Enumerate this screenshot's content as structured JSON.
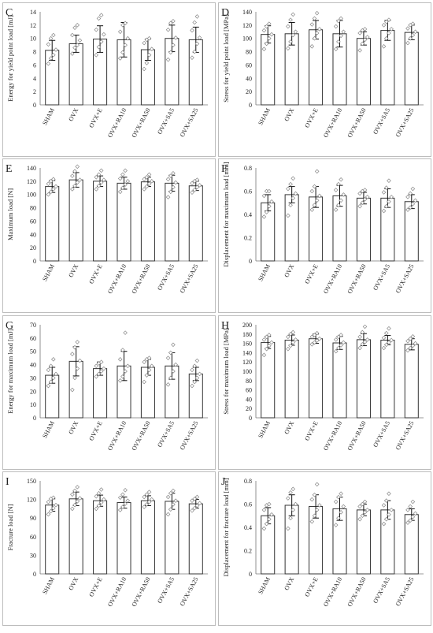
{
  "chart_data": [
    {
      "panel": "C",
      "type": "bar",
      "categories": [
        "SHAM",
        "OVX",
        "OVX+E",
        "OVX+RA10",
        "OVX+RA50",
        "OVX+SA5",
        "OVX+SA25"
      ],
      "values": [
        8.2,
        9.2,
        9.9,
        9.8,
        8.3,
        10.0,
        9.8
      ],
      "error": [
        1.5,
        1.3,
        2.0,
        2.6,
        1.6,
        2.0,
        1.9
      ],
      "points": [
        [
          6.2,
          7.0,
          7.5,
          8.3,
          9.1,
          10.0,
          10.5
        ],
        [
          7.7,
          8.6,
          9.0,
          9.7,
          10.5,
          11.6,
          12.0
        ],
        [
          7.5,
          8.7,
          9.5,
          10.6,
          11.3,
          13.0,
          13.5
        ],
        [
          7.0,
          7.9,
          9.0,
          10.0,
          11.0,
          12.0,
          12.3
        ],
        [
          5.4,
          6.3,
          7.5,
          8.4,
          9.3,
          9.8,
          10.0
        ],
        [
          6.8,
          7.9,
          9.0,
          10.1,
          11.3,
          12.3,
          12.6
        ],
        [
          7.1,
          8.0,
          9.2,
          10.1,
          11.2,
          12.4,
          13.3
        ]
      ],
      "ylabel": "Energy for yield point load [mJ]",
      "ylim": [
        0,
        14
      ],
      "yticks": [
        0,
        2,
        4,
        6,
        8,
        10,
        12,
        14
      ]
    },
    {
      "panel": "D",
      "type": "bar",
      "categories": [
        "SHAM",
        "OVX",
        "OVX+E",
        "OVX+RA10",
        "OVX+RA50",
        "OVX+SA5",
        "OVX+SA25"
      ],
      "values": [
        106,
        107,
        113,
        107,
        100,
        112,
        109
      ],
      "error": [
        13,
        17,
        14,
        20,
        10,
        15,
        11
      ],
      "points": [
        [
          84,
          92,
          100,
          106,
          112,
          118,
          122
        ],
        [
          85,
          95,
          105,
          110,
          118,
          128,
          136
        ],
        [
          88,
          100,
          108,
          114,
          121,
          130,
          138
        ],
        [
          84,
          95,
          104,
          110,
          118,
          126,
          130
        ],
        [
          82,
          92,
          98,
          102,
          108,
          112,
          114
        ],
        [
          88,
          100,
          108,
          114,
          120,
          125,
          128
        ],
        [
          93,
          100,
          105,
          110,
          115,
          120,
          122
        ]
      ],
      "ylabel": "Stress for yield point load [MPa]",
      "ylim": [
        0,
        140
      ],
      "yticks": [
        0,
        20,
        40,
        60,
        80,
        100,
        120,
        140
      ]
    },
    {
      "panel": "E",
      "type": "bar",
      "categories": [
        "SHAM",
        "OVX",
        "OVX+E",
        "OVX+RA10",
        "OVX+RA50",
        "OVX+SA5",
        "OVX+SA25"
      ],
      "values": [
        112,
        122,
        120,
        117,
        119,
        117,
        113
      ],
      "error": [
        9,
        11,
        8,
        9,
        7,
        12,
        7
      ],
      "points": [
        [
          100,
          104,
          108,
          112,
          116,
          120,
          123
        ],
        [
          108,
          113,
          118,
          122,
          128,
          135,
          142
        ],
        [
          108,
          113,
          118,
          122,
          126,
          130,
          136
        ],
        [
          104,
          110,
          115,
          120,
          124,
          130,
          136
        ],
        [
          108,
          112,
          116,
          120,
          123,
          126,
          130
        ],
        [
          96,
          104,
          111,
          118,
          123,
          128,
          132
        ],
        [
          103,
          107,
          111,
          114,
          117,
          120,
          122
        ]
      ],
      "ylabel": "Maximum load [N]",
      "ylim": [
        0,
        140
      ],
      "yticks": [
        0,
        20,
        40,
        60,
        80,
        100,
        120,
        140
      ]
    },
    {
      "panel": "F",
      "type": "bar",
      "categories": [
        "SHAM",
        "OVX",
        "OVX+E",
        "OVX+RA10",
        "OVX+RA50",
        "OVX+SA5",
        "OVX+SA25"
      ],
      "values": [
        0.5,
        0.57,
        0.55,
        0.56,
        0.54,
        0.54,
        0.51
      ],
      "error": [
        0.07,
        0.07,
        0.09,
        0.09,
        0.05,
        0.08,
        0.06
      ],
      "points": [
        [
          0.38,
          0.42,
          0.47,
          0.51,
          0.56,
          0.6,
          0.6
        ],
        [
          0.39,
          0.48,
          0.54,
          0.58,
          0.62,
          0.66,
          0.71
        ],
        [
          0.44,
          0.48,
          0.52,
          0.56,
          0.6,
          0.64,
          0.77
        ],
        [
          0.44,
          0.48,
          0.52,
          0.57,
          0.61,
          0.66,
          0.7
        ],
        [
          0.47,
          0.5,
          0.53,
          0.55,
          0.58,
          0.6,
          0.61
        ],
        [
          0.43,
          0.47,
          0.51,
          0.55,
          0.59,
          0.63,
          0.69
        ],
        [
          0.44,
          0.46,
          0.49,
          0.52,
          0.55,
          0.58,
          0.62
        ]
      ],
      "ylabel": "Displacement for maximum load [mm]",
      "ylim": [
        0,
        0.8
      ],
      "yticks": [
        0,
        0.2,
        0.4,
        0.6,
        0.8
      ]
    },
    {
      "panel": "G",
      "type": "bar",
      "categories": [
        "SHAM",
        "OVX",
        "OVX+E",
        "OVX+RA10",
        "OVX+RA50",
        "OVX+SA5",
        "OVX+SA25"
      ],
      "values": [
        32,
        42.5,
        37,
        39,
        38,
        39,
        33
      ],
      "error": [
        6,
        11,
        5,
        11,
        6,
        10,
        5
      ],
      "points": [
        [
          24,
          27,
          30,
          33,
          36,
          39,
          44
        ],
        [
          21,
          30,
          37,
          43,
          48,
          53,
          57
        ],
        [
          31,
          33,
          35,
          37,
          39,
          41,
          42
        ],
        [
          28,
          31,
          35,
          39,
          44,
          51,
          64
        ],
        [
          27,
          32,
          36,
          39,
          42,
          44,
          45
        ],
        [
          25,
          30,
          35,
          40,
          45,
          49,
          55
        ],
        [
          24,
          27,
          30,
          33,
          36,
          39,
          43
        ]
      ],
      "ylabel": "Energy for maximum load [mJ]",
      "ylim": [
        0,
        70
      ],
      "yticks": [
        0,
        10,
        20,
        30,
        40,
        50,
        60,
        70
      ]
    },
    {
      "panel": "H",
      "type": "bar",
      "categories": [
        "SHAM",
        "OVX",
        "OVX+E",
        "OVX+RA10",
        "OVX+RA50",
        "OVX+SA5",
        "OVX+SA25"
      ],
      "values": [
        162,
        167,
        170,
        161,
        168,
        167,
        158
      ],
      "error": [
        13,
        11,
        10,
        14,
        13,
        10,
        12
      ],
      "points": [
        [
          135,
          148,
          155,
          162,
          168,
          174,
          178
        ],
        [
          148,
          155,
          162,
          168,
          174,
          180,
          184
        ],
        [
          158,
          162,
          166,
          170,
          174,
          178,
          182
        ],
        [
          143,
          150,
          156,
          162,
          168,
          174,
          178
        ],
        [
          150,
          158,
          163,
          168,
          174,
          184,
          196
        ],
        [
          150,
          157,
          162,
          167,
          172,
          182,
          192
        ],
        [
          145,
          150,
          155,
          160,
          165,
          170,
          175
        ]
      ],
      "ylabel": "Stress for maximum load [MPa]",
      "ylim": [
        0,
        200
      ],
      "yticks": [
        0,
        20,
        40,
        60,
        80,
        100,
        120,
        140,
        160,
        180,
        200
      ]
    },
    {
      "panel": "I",
      "type": "bar",
      "categories": [
        "SHAM",
        "OVX",
        "OVX+E",
        "OVX+RA10",
        "OVX+RA50",
        "OVX+SA5",
        "OVX+SA25"
      ],
      "values": [
        111,
        121,
        118,
        115,
        118,
        117,
        113
      ],
      "error": [
        10,
        11,
        9,
        9,
        8,
        13,
        7
      ],
      "points": [
        [
          96,
          101,
          106,
          111,
          116,
          121,
          123
        ],
        [
          105,
          111,
          117,
          122,
          128,
          134,
          140
        ],
        [
          105,
          110,
          115,
          120,
          125,
          130,
          136
        ],
        [
          103,
          108,
          113,
          118,
          123,
          128,
          135
        ],
        [
          108,
          112,
          116,
          120,
          124,
          128,
          132
        ],
        [
          96,
          104,
          112,
          118,
          124,
          130,
          134
        ],
        [
          102,
          106,
          110,
          114,
          118,
          121,
          124
        ]
      ],
      "ylabel": "Fracture load [N]",
      "ylim": [
        0,
        150
      ],
      "yticks": [
        0,
        30,
        60,
        90,
        120,
        150
      ]
    },
    {
      "panel": "J",
      "type": "bar",
      "categories": [
        "SHAM",
        "OVX",
        "OVX+E",
        "OVX+RA10",
        "OVX+RA50",
        "OVX+SA5",
        "OVX+SA25"
      ],
      "values": [
        0.5,
        0.59,
        0.58,
        0.56,
        0.55,
        0.55,
        0.51
      ],
      "error": [
        0.07,
        0.09,
        0.1,
        0.1,
        0.05,
        0.08,
        0.05
      ],
      "points": [
        [
          0.39,
          0.43,
          0.47,
          0.51,
          0.55,
          0.59,
          0.6
        ],
        [
          0.39,
          0.48,
          0.55,
          0.6,
          0.65,
          0.7,
          0.73
        ],
        [
          0.45,
          0.5,
          0.55,
          0.59,
          0.64,
          0.68,
          0.77
        ],
        [
          0.42,
          0.48,
          0.53,
          0.58,
          0.62,
          0.66,
          0.69
        ],
        [
          0.47,
          0.5,
          0.53,
          0.55,
          0.58,
          0.6,
          0.62
        ],
        [
          0.43,
          0.47,
          0.51,
          0.55,
          0.59,
          0.63,
          0.69
        ],
        [
          0.44,
          0.46,
          0.49,
          0.52,
          0.55,
          0.58,
          0.62
        ]
      ],
      "ylabel": "Displacement for fracture load [mm]",
      "ylim": [
        0,
        0.8
      ],
      "yticks": [
        0,
        0.2,
        0.4,
        0.6,
        0.8
      ]
    }
  ]
}
